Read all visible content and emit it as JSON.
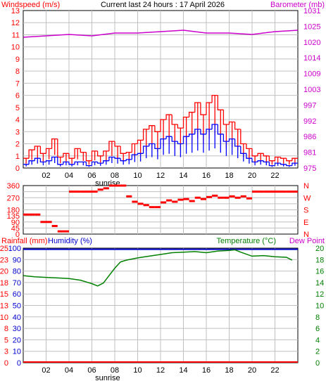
{
  "header": {
    "left_title": "Windspeed (m/s)",
    "center_title": "Current last 24 hours : 17 April 2026",
    "right_title": "Barometer (mb)"
  },
  "colors": {
    "wind_gust": "#ff0000",
    "wind_avg": "#0000ff",
    "barometer": "#cc00cc",
    "direction": "#ff0000",
    "rainfall": "#ff0000",
    "humidity": "#0000cc",
    "temperature": "#008000",
    "dew_point": "#cc00cc",
    "left_axis": "#ff0000",
    "grid": "#c0c0c0"
  },
  "chart_data": [
    {
      "type": "line",
      "name": "windspeed-barometer",
      "x_ticks": [
        "02",
        "04",
        "06",
        "08",
        "10",
        "12",
        "14",
        "16",
        "18",
        "20",
        "22"
      ],
      "x_tick_hours": [
        2,
        4,
        6,
        8,
        10,
        12,
        14,
        16,
        18,
        20,
        22
      ],
      "sunrise_label": "sunrise",
      "sunrise_hour": 7.5,
      "left_axis": {
        "label": "Windspeed (m/s)",
        "ticks": [
          0,
          1,
          2,
          3,
          4,
          5,
          6,
          7,
          8,
          9,
          10,
          11,
          12,
          13
        ],
        "range": [
          0,
          13
        ]
      },
      "right_axis": {
        "label": "Barometer (mb)",
        "ticks": [
          "975",
          "981",
          "986",
          "992",
          "997",
          "1003",
          "1009",
          "1014",
          "1020",
          "1025",
          "1031"
        ],
        "range": [
          975,
          1031
        ]
      },
      "series": [
        {
          "name": "wind gust",
          "hours": [
            0,
            0.5,
            1,
            1.5,
            2,
            2.5,
            3,
            3.5,
            4,
            4.5,
            5,
            5.5,
            6,
            6.5,
            7,
            7.5,
            8,
            8.5,
            9,
            9.5,
            10,
            10.5,
            11,
            11.5,
            12,
            12.5,
            13,
            13.5,
            14,
            14.5,
            15,
            15.5,
            16,
            16.5,
            17,
            17.5,
            18,
            18.5,
            19,
            19.5,
            20,
            20.5,
            21,
            21.5,
            22,
            22.5,
            23,
            23.5
          ],
          "values": [
            0.8,
            1.5,
            1.8,
            1.2,
            1.6,
            2.4,
            0.9,
            1.2,
            0.8,
            1.6,
            1.3,
            0.6,
            1.4,
            1.0,
            1.4,
            2.2,
            1.8,
            1.2,
            1.3,
            2.0,
            2.3,
            3.2,
            3.5,
            3.0,
            4.0,
            4.4,
            3.6,
            3.3,
            4.2,
            4.6,
            5.4,
            4.4,
            5.4,
            6.0,
            4.8,
            3.6,
            3.8,
            3.2,
            2.0,
            1.6,
            1.0,
            1.2,
            1.0,
            0.6,
            0.9,
            0.8,
            0.6,
            0.8
          ]
        },
        {
          "name": "wind average",
          "hours": [
            0,
            0.5,
            1,
            1.5,
            2,
            2.5,
            3,
            3.5,
            4,
            4.5,
            5,
            5.5,
            6,
            6.5,
            7,
            7.5,
            8,
            8.5,
            9,
            9.5,
            10,
            10.5,
            11,
            11.5,
            12,
            12.5,
            13,
            13.5,
            14,
            14.5,
            15,
            15.5,
            16,
            16.5,
            17,
            17.5,
            18,
            18.5,
            19,
            19.5,
            20,
            20.5,
            21,
            21.5,
            22,
            22.5,
            23,
            23.5
          ],
          "values": [
            0.3,
            0.6,
            0.8,
            0.5,
            0.6,
            0.9,
            0.3,
            0.5,
            0.3,
            0.5,
            0.5,
            0.2,
            0.5,
            0.4,
            0.6,
            0.9,
            0.8,
            0.6,
            0.7,
            1.1,
            1.2,
            1.8,
            2.0,
            1.6,
            2.4,
            2.6,
            2.2,
            2.0,
            2.6,
            2.8,
            3.2,
            2.8,
            3.2,
            3.6,
            2.8,
            2.2,
            2.4,
            1.8,
            1.2,
            0.8,
            0.5,
            0.6,
            0.5,
            0.2,
            0.4,
            0.3,
            0.2,
            0.4
          ]
        },
        {
          "name": "barometer",
          "hours": [
            0,
            2,
            4,
            6,
            8,
            10,
            12,
            14,
            16,
            18,
            20,
            22,
            24
          ],
          "values": [
            1021.5,
            1022.0,
            1022.5,
            1022.0,
            1023.0,
            1023.0,
            1023.5,
            1024.0,
            1023.0,
            1023.0,
            1022.5,
            1023.5,
            1024.0
          ]
        }
      ]
    },
    {
      "type": "scatter",
      "name": "wind-direction",
      "left_axis": {
        "ticks": [
          0,
          45,
          90,
          135,
          180,
          225,
          270,
          315,
          360
        ],
        "ticks_shown": [
          "0",
          "45",
          "90",
          "135",
          "180",
          "270",
          "360"
        ],
        "range": [
          0,
          360
        ]
      },
      "right_axis": {
        "labels": [
          "N",
          "E",
          "S",
          "W",
          "N"
        ]
      },
      "series": [
        {
          "name": "direction",
          "hours": [
            0,
            0.5,
            1,
            1.5,
            2,
            2.5,
            3,
            4,
            5,
            6,
            6.5,
            7,
            7.5,
            8,
            8.5,
            9,
            9.5,
            10,
            10.5,
            11,
            11.5,
            12,
            12.5,
            13,
            13.5,
            14,
            14.5,
            15,
            15.5,
            16,
            16.5,
            17,
            17.5,
            18,
            18.5,
            19,
            19.5,
            20,
            21,
            22,
            23
          ],
          "values": [
            145,
            145,
            145,
            90,
            90,
            60,
            20,
            315,
            315,
            315,
            330,
            340,
            360,
            360,
            360,
            280,
            240,
            225,
            215,
            200,
            200,
            235,
            250,
            240,
            255,
            260,
            245,
            270,
            260,
            275,
            285,
            270,
            270,
            280,
            270,
            280,
            265,
            315,
            315,
            315,
            315
          ]
        }
      ]
    },
    {
      "type": "line",
      "name": "rain-humidity-temperature",
      "left_axis": {
        "rainfall_label": "Rainfall (mm)",
        "humidity_label": "Humidity (%)",
        "rainfall_ticks": [
          "0",
          "3",
          "5",
          "8",
          "10",
          "13",
          "15",
          "18",
          "20",
          "23",
          "25"
        ],
        "humidity_ticks": [
          "0",
          "10",
          "20",
          "30",
          "40",
          "50",
          "60",
          "70",
          "80",
          "90",
          "100"
        ],
        "humidity_range": [
          0,
          100
        ]
      },
      "right_axis": {
        "temperature_label": "Temperature (°C)",
        "dew_point_label": "Dew Point",
        "ticks": [
          "0",
          "2",
          "4",
          "6",
          "8",
          "10",
          "12",
          "14",
          "16",
          "18",
          "20"
        ],
        "range": [
          0,
          20
        ]
      },
      "series": [
        {
          "name": "temperature",
          "hours": [
            0,
            1,
            2,
            3,
            4,
            5,
            6,
            6.5,
            7,
            7.5,
            8,
            8.5,
            9,
            10,
            11,
            12,
            13,
            14,
            15,
            16,
            17,
            18,
            18.5,
            19,
            20,
            21,
            22,
            23,
            23.5
          ],
          "values": [
            15.2,
            15.0,
            14.9,
            14.8,
            14.7,
            14.4,
            13.8,
            13.4,
            13.9,
            15.2,
            16.5,
            17.6,
            17.9,
            18.3,
            18.6,
            18.9,
            19.2,
            19.3,
            19.4,
            19.2,
            19.5,
            19.6,
            19.7,
            19.3,
            18.6,
            18.7,
            18.5,
            18.4,
            17.9
          ]
        },
        {
          "name": "humidity",
          "hours": [
            0,
            24
          ],
          "values": [
            99,
            99
          ]
        },
        {
          "name": "rainfall",
          "hours": [
            0,
            24
          ],
          "values": [
            0,
            0
          ]
        }
      ]
    }
  ]
}
